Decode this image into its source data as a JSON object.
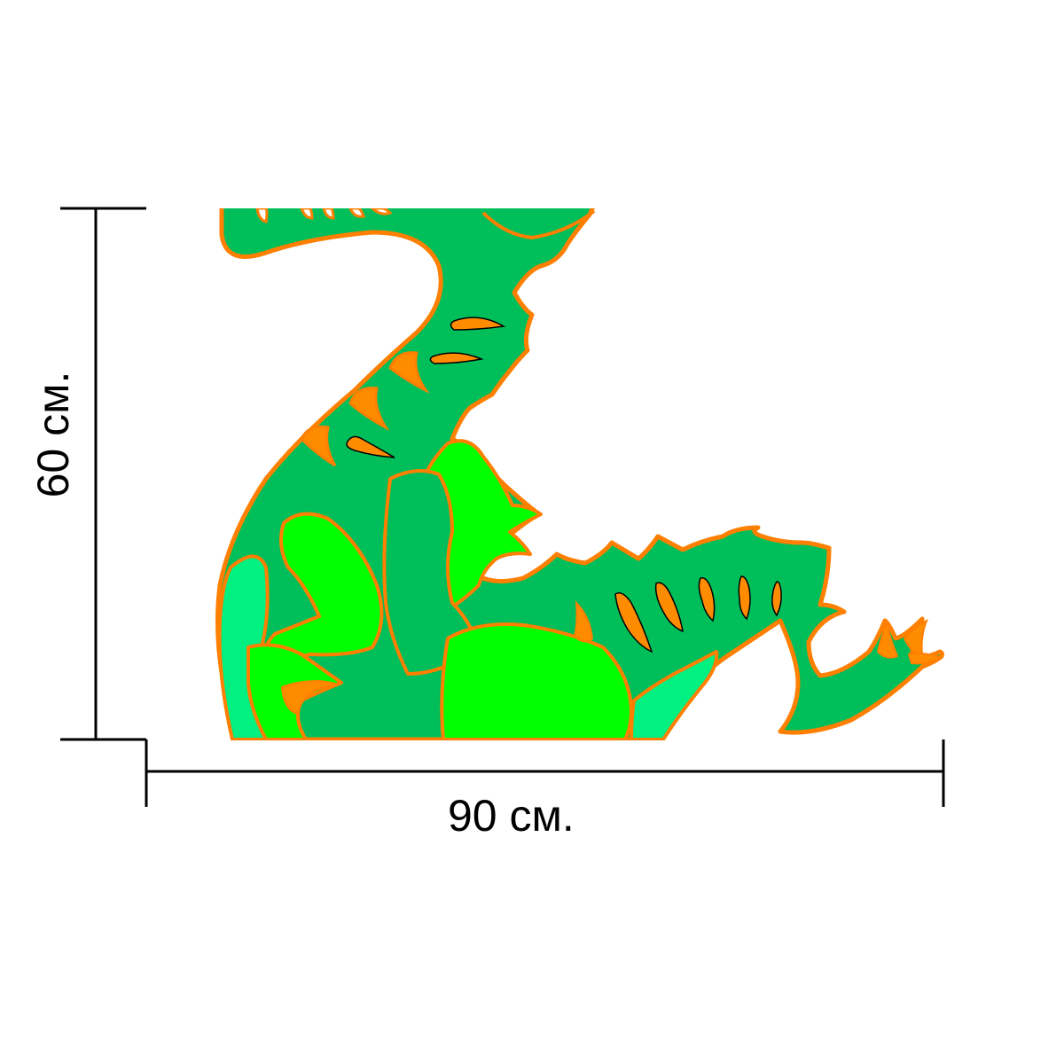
{
  "dimensions": {
    "width_label": "90 см.",
    "height_label": "60 см."
  },
  "colors": {
    "background": "#ffffff",
    "body_dark_green": "#00be5a",
    "belly_mint_green": "#00f082",
    "limb_lime_green": "#00ff00",
    "outline_orange": "#ff7f00",
    "spot_orange": "#ff8c00",
    "dimension_line": "#000000"
  },
  "illustration": {
    "subject": "green-dragon-decal"
  }
}
